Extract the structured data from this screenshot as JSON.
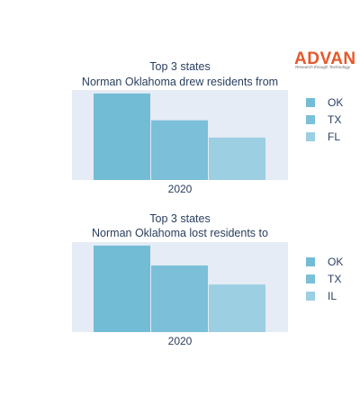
{
  "logo": {
    "name": "ADVAN",
    "tagline": "Research through Technology"
  },
  "colors": {
    "plot_bg": "#e5ecf6",
    "bar_1": "#73bcd6",
    "bar_2": "#7bbfd9",
    "bar_3": "#9ccfe2"
  },
  "chart_data": [
    {
      "type": "bar",
      "title_lines": [
        "Top 3 states",
        "Norman Oklahoma drew residents from"
      ],
      "categories": [
        "2020"
      ],
      "series": [
        {
          "name": "OK",
          "values": [
            100
          ]
        },
        {
          "name": "TX",
          "values": [
            69
          ]
        },
        {
          "name": "FL",
          "values": [
            49
          ]
        }
      ],
      "ylim": [
        0,
        104
      ],
      "grid": false,
      "legend": "right"
    },
    {
      "type": "bar",
      "title_lines": [
        "Top 3 states",
        "Norman Oklahoma lost residents to"
      ],
      "categories": [
        "2020"
      ],
      "series": [
        {
          "name": "OK",
          "values": [
            100
          ]
        },
        {
          "name": "TX",
          "values": [
            77
          ]
        },
        {
          "name": "IL",
          "values": [
            55
          ]
        }
      ],
      "ylim": [
        0,
        104
      ],
      "grid": false,
      "legend": "right"
    }
  ]
}
